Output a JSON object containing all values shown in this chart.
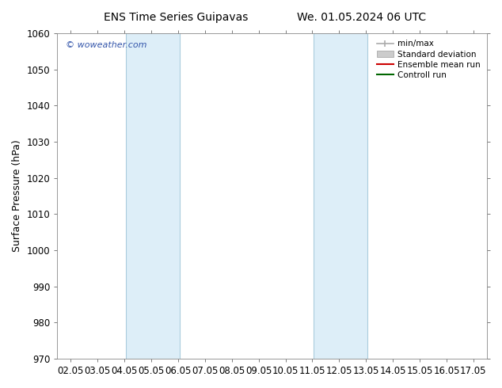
{
  "title_left": "ENS Time Series Guipavas",
  "title_right": "We. 01.05.2024 06 UTC",
  "ylabel": "Surface Pressure (hPa)",
  "ylim": [
    970,
    1060
  ],
  "yticks": [
    970,
    980,
    990,
    1000,
    1010,
    1020,
    1030,
    1040,
    1050,
    1060
  ],
  "xlim": [
    1.5,
    17.5
  ],
  "xtick_labels": [
    "02.05",
    "03.05",
    "04.05",
    "05.05",
    "06.05",
    "07.05",
    "08.05",
    "09.05",
    "10.05",
    "11.05",
    "12.05",
    "13.05",
    "14.05",
    "15.05",
    "16.05",
    "17.05"
  ],
  "xtick_positions": [
    2,
    3,
    4,
    5,
    6,
    7,
    8,
    9,
    10,
    11,
    12,
    13,
    14,
    15,
    16,
    17
  ],
  "shaded_bands": [
    {
      "xmin": 4.05,
      "xmax": 6.05
    },
    {
      "xmin": 11.05,
      "xmax": 13.05
    }
  ],
  "band_color": "#ddeef8",
  "band_left_color": "#aaccdd",
  "band_right_color": "#aaccdd",
  "watermark": "© woweather.com",
  "watermark_color": "#3355aa",
  "legend_entries": [
    "min/max",
    "Standard deviation",
    "Ensemble mean run",
    "Controll run"
  ],
  "legend_line_color": "#aaaaaa",
  "legend_std_facecolor": "#cccccc",
  "legend_std_edgecolor": "#aaaaaa",
  "legend_mean_color": "#cc0000",
  "legend_ctrl_color": "#006600",
  "background_color": "#ffffff",
  "spine_color": "#888888",
  "title_fontsize": 10,
  "ylabel_fontsize": 9,
  "tick_fontsize": 8.5,
  "legend_fontsize": 7.5
}
